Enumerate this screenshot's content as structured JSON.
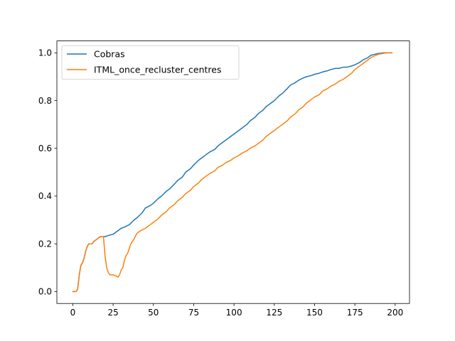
{
  "chart_data": {
    "type": "line",
    "title": "",
    "xlabel": "",
    "ylabel": "",
    "xlim": [
      -9.9,
      208.9
    ],
    "ylim": [
      -0.05,
      1.05
    ],
    "xticks": [
      0,
      25,
      50,
      75,
      100,
      125,
      150,
      175,
      200
    ],
    "yticks": [
      0.0,
      0.2,
      0.4,
      0.6,
      0.8,
      1.0
    ],
    "xtick_labels": [
      "0",
      "25",
      "50",
      "75",
      "100",
      "125",
      "150",
      "175",
      "200"
    ],
    "ytick_labels": [
      "0.0",
      "0.2",
      "0.4",
      "0.6",
      "0.8",
      "1.0"
    ],
    "grid": false,
    "legend": "upper-left",
    "series": [
      {
        "name": "Cobras",
        "color": "#1f77b4",
        "x": [
          0,
          2,
          3,
          4,
          5,
          6,
          7,
          8,
          9,
          10,
          11,
          12,
          13,
          15,
          17,
          18,
          20,
          22,
          25,
          27,
          30,
          32,
          35,
          38,
          40,
          43,
          45,
          48,
          50,
          53,
          55,
          58,
          60,
          63,
          65,
          68,
          70,
          73,
          75,
          78,
          80,
          83,
          85,
          88,
          90,
          93,
          95,
          98,
          100,
          103,
          105,
          108,
          110,
          113,
          115,
          118,
          120,
          123,
          125,
          128,
          130,
          133,
          135,
          138,
          140,
          143,
          145,
          148,
          150,
          153,
          155,
          158,
          160,
          163,
          165,
          168,
          170,
          173,
          175,
          178,
          180,
          183,
          185,
          188,
          190,
          193,
          195,
          198
        ],
        "values": [
          0.0,
          0.0,
          0.01,
          0.07,
          0.11,
          0.12,
          0.14,
          0.17,
          0.19,
          0.2,
          0.2,
          0.2,
          0.21,
          0.22,
          0.23,
          0.23,
          0.23,
          0.235,
          0.24,
          0.25,
          0.265,
          0.27,
          0.28,
          0.3,
          0.31,
          0.33,
          0.35,
          0.36,
          0.37,
          0.39,
          0.4,
          0.42,
          0.43,
          0.45,
          0.465,
          0.48,
          0.5,
          0.515,
          0.53,
          0.55,
          0.56,
          0.575,
          0.585,
          0.595,
          0.61,
          0.625,
          0.635,
          0.65,
          0.66,
          0.675,
          0.685,
          0.7,
          0.715,
          0.73,
          0.745,
          0.76,
          0.775,
          0.79,
          0.8,
          0.82,
          0.83,
          0.85,
          0.865,
          0.875,
          0.885,
          0.895,
          0.9,
          0.905,
          0.91,
          0.915,
          0.92,
          0.925,
          0.93,
          0.935,
          0.935,
          0.94,
          0.94,
          0.945,
          0.95,
          0.96,
          0.97,
          0.98,
          0.99,
          0.995,
          0.998,
          1.0,
          1.0,
          1.0
        ]
      },
      {
        "name": "ITML_once_recluster_centres",
        "color": "#ff7f0e",
        "x": [
          0,
          2,
          3,
          4,
          5,
          6,
          7,
          8,
          9,
          10,
          11,
          12,
          13,
          15,
          17,
          18,
          19,
          20,
          21,
          22,
          23,
          25,
          27,
          28,
          29,
          30,
          31,
          32,
          33,
          34,
          35,
          36,
          37,
          38,
          39,
          40,
          42,
          45,
          48,
          50,
          53,
          55,
          58,
          60,
          63,
          65,
          68,
          70,
          73,
          75,
          78,
          80,
          83,
          85,
          88,
          90,
          93,
          95,
          98,
          100,
          103,
          105,
          108,
          110,
          113,
          115,
          118,
          120,
          123,
          125,
          128,
          130,
          133,
          135,
          138,
          140,
          143,
          145,
          148,
          150,
          153,
          155,
          158,
          160,
          163,
          165,
          168,
          170,
          173,
          175,
          178,
          180,
          183,
          185,
          188,
          190,
          193,
          195,
          198
        ],
        "values": [
          0.0,
          0.0,
          0.01,
          0.07,
          0.11,
          0.12,
          0.14,
          0.17,
          0.19,
          0.2,
          0.2,
          0.2,
          0.21,
          0.22,
          0.23,
          0.23,
          0.23,
          0.15,
          0.1,
          0.08,
          0.07,
          0.07,
          0.065,
          0.06,
          0.07,
          0.09,
          0.1,
          0.13,
          0.15,
          0.16,
          0.18,
          0.2,
          0.21,
          0.22,
          0.235,
          0.245,
          0.255,
          0.265,
          0.28,
          0.29,
          0.305,
          0.32,
          0.335,
          0.35,
          0.365,
          0.38,
          0.395,
          0.41,
          0.425,
          0.44,
          0.455,
          0.47,
          0.485,
          0.495,
          0.505,
          0.52,
          0.53,
          0.54,
          0.55,
          0.56,
          0.57,
          0.58,
          0.59,
          0.6,
          0.61,
          0.62,
          0.635,
          0.65,
          0.665,
          0.675,
          0.69,
          0.7,
          0.715,
          0.73,
          0.745,
          0.76,
          0.775,
          0.79,
          0.805,
          0.815,
          0.825,
          0.84,
          0.85,
          0.86,
          0.87,
          0.88,
          0.89,
          0.9,
          0.915,
          0.93,
          0.945,
          0.955,
          0.97,
          0.98,
          0.99,
          0.995,
          0.998,
          1.0,
          1.0
        ]
      }
    ]
  }
}
